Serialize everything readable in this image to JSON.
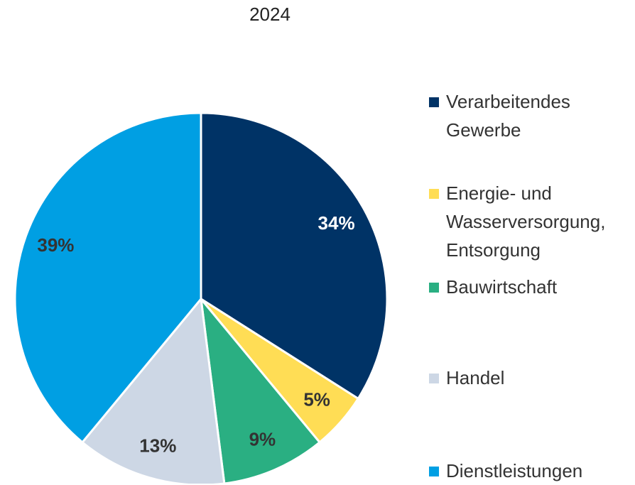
{
  "chart_data": {
    "type": "pie",
    "title": "2024",
    "categories": [
      "Verarbeitendes Gewerbe",
      "Energie- und Wasserversorgung, Entsorgung",
      "Bauwirtschaft",
      "Handel",
      "Dienstleistungen"
    ],
    "values": [
      34,
      5,
      9,
      13,
      39
    ],
    "value_labels": [
      "34%",
      "5%",
      "9%",
      "13%",
      "39%"
    ],
    "colors": [
      "#003366",
      "#ffdd55",
      "#2aaf82",
      "#cdd7e5",
      "#009fe3"
    ],
    "legend": "right"
  }
}
